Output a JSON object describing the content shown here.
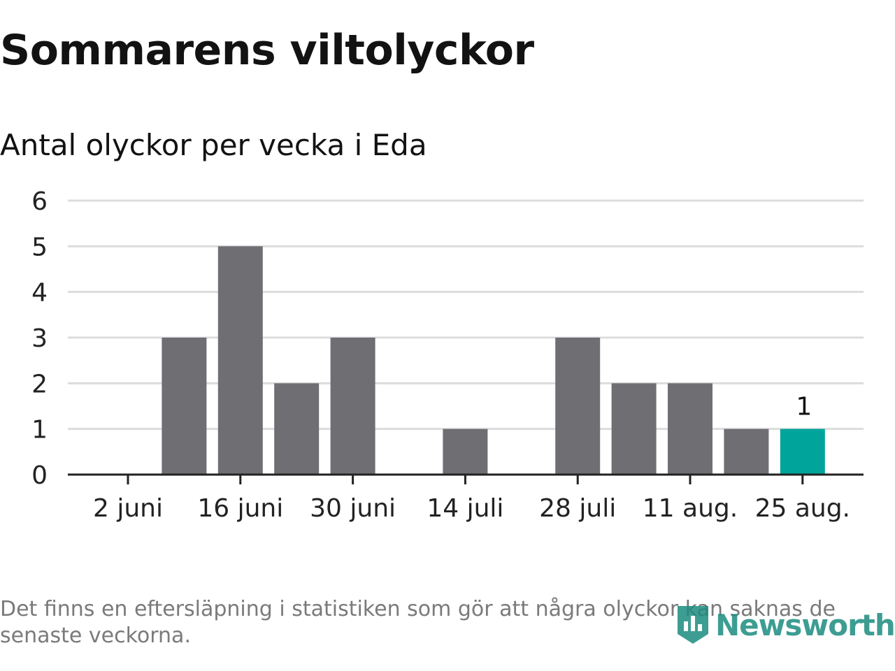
{
  "title": "Sommarens viltolyckor",
  "subtitle": "Antal olyckor per vecka i Eda",
  "footnote": "Det finns en eftersläpning i statistiken som gör att några olyckor kan saknas de senaste veckorna.",
  "logo": {
    "text": "Newsworthy",
    "icon": "newsworthy-logo-icon",
    "color": "#1c8c7f"
  },
  "colors": {
    "bar": "#6f6e73",
    "highlight": "#00a49a",
    "grid": "#dcdcdc",
    "axis": "#222222"
  },
  "chart_data": {
    "type": "bar",
    "categories": [
      "2 juni",
      "9 juni",
      "16 juni",
      "23 juni",
      "30 juni",
      "7 juli",
      "14 juli",
      "21 juli",
      "28 juli",
      "4 aug.",
      "11 aug.",
      "18 aug.",
      "25 aug."
    ],
    "values": [
      0,
      3,
      5,
      2,
      3,
      0,
      1,
      0,
      3,
      2,
      2,
      1,
      1
    ],
    "x_tick_labels": [
      "2 juni",
      "16 juni",
      "30 juni",
      "14 juli",
      "28 juli",
      "11 aug.",
      "25 aug."
    ],
    "y_ticks": [
      0,
      1,
      2,
      3,
      4,
      5,
      6
    ],
    "ylim": [
      0,
      6
    ],
    "highlight_index": 12,
    "highlight_label": "1",
    "grid": true
  }
}
